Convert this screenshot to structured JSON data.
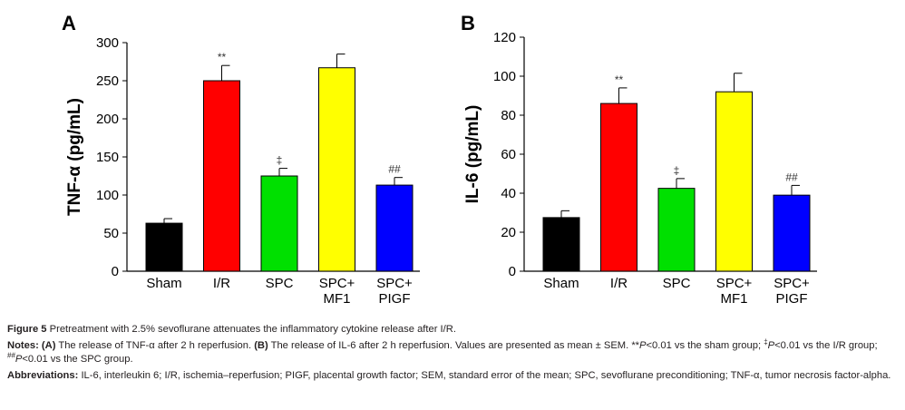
{
  "chart_data": [
    {
      "type": "bar",
      "panel": "A",
      "categories": [
        [
          "Sham"
        ],
        [
          "I/R"
        ],
        [
          "SPC"
        ],
        [
          "SPC+",
          "MF1"
        ],
        [
          "SPC+",
          "PIGF"
        ]
      ],
      "values": [
        63,
        250,
        125,
        267,
        113
      ],
      "errors": [
        6,
        20,
        10,
        18,
        10
      ],
      "significance": [
        "",
        "**",
        "‡",
        "",
        "##"
      ],
      "colors": [
        "#000000",
        "#ff0000",
        "#00e000",
        "#ffff00",
        "#0000ff"
      ],
      "ylabel": "TNF-α (pg/mL)",
      "ylim": [
        0,
        300
      ],
      "yticks": [
        0,
        50,
        100,
        150,
        200,
        250,
        300
      ]
    },
    {
      "type": "bar",
      "panel": "B",
      "categories": [
        [
          "Sham"
        ],
        [
          "I/R"
        ],
        [
          "SPC"
        ],
        [
          "SPC+",
          "MF1"
        ],
        [
          "SPC+",
          "PIGF"
        ]
      ],
      "values": [
        27.5,
        86,
        42.5,
        92,
        39
      ],
      "errors": [
        3.5,
        8,
        5,
        9.5,
        5
      ],
      "significance": [
        "",
        "**",
        "‡",
        "",
        "##"
      ],
      "colors": [
        "#000000",
        "#ff0000",
        "#00e000",
        "#ffff00",
        "#0000ff"
      ],
      "ylabel": "IL-6 (pg/mL)",
      "ylim": [
        0,
        120
      ],
      "yticks": [
        0,
        20,
        40,
        60,
        80,
        100,
        120
      ]
    }
  ],
  "caption": {
    "figure_label": "Figure 5",
    "figure_text": "Pretreatment with 2.5% sevoflurane attenuates the inflammatory cytokine release after I/R.",
    "notes_label": "Notes:",
    "notes_a_label": "(A)",
    "notes_a_text": "The release of TNF-α after 2 h reperfusion.",
    "notes_b_label": "(B)",
    "notes_b_text": "The release of IL-6 after 2 h reperfusion. Values are presented as mean ± SEM. **",
    "p_symbol": "P",
    "notes_sig1": "<0.01 vs the sham group;",
    "dagger": "‡",
    "notes_sig2": "<0.01 vs the I/R group;",
    "hash": "##",
    "notes_sig3": "<0.01 vs the SPC group.",
    "abbrev_label": "Abbreviations:",
    "abbrev_text": "IL-6, interleukin 6; I/R, ischemia–reperfusion; PIGF, placental growth factor; SEM, standard error of the mean; SPC, sevoflurane preconditioning; TNF-α, tumor necrosis factor-alpha."
  }
}
